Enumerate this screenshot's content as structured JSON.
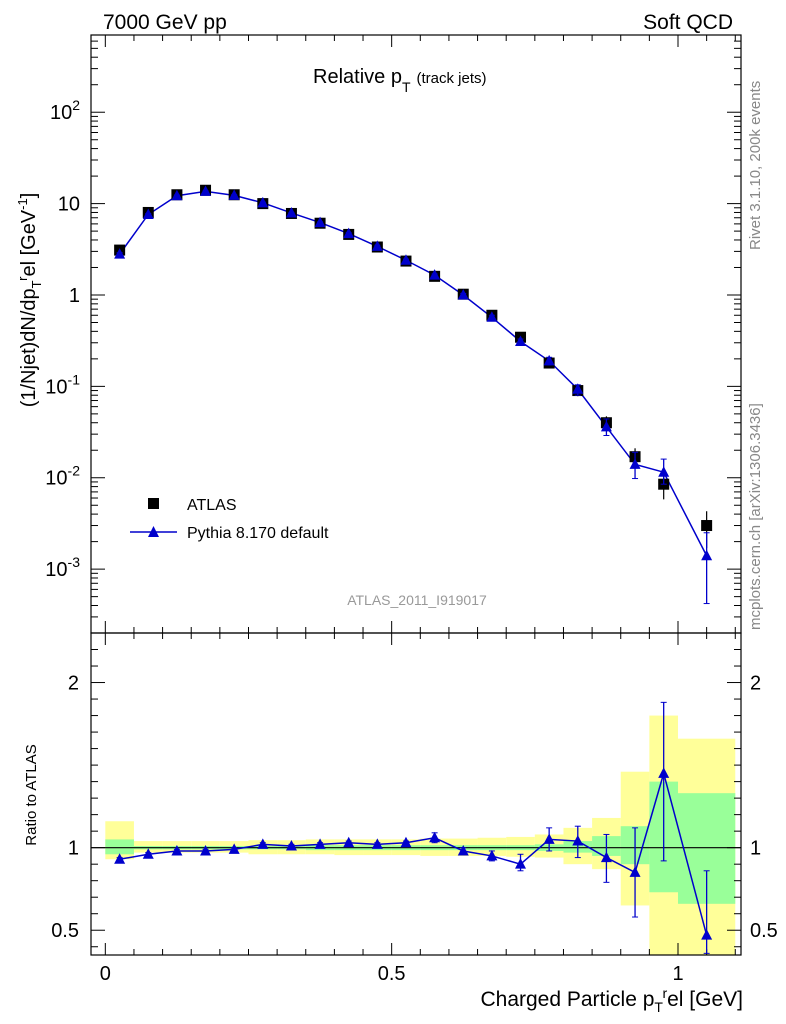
{
  "header": {
    "left": "7000 GeV pp",
    "right": "Soft QCD"
  },
  "side": {
    "rivet": "Rivet 3.1.10,  200k events",
    "mcplots": "mcplots.cern.ch [arXiv:1306.3436]"
  },
  "chart_data": {
    "type": "scatter",
    "title_main": "Relative p",
    "title_sub": "T",
    "title_paren": "(track jets)",
    "analysis_id": "ATLAS_2011_I919017",
    "ylabel": "(1/Njet)dN/dp",
    "ylabel_rest": "el [GeV",
    "xlabel": "Charged Particle p",
    "xlabel_rest": "el [GeV]",
    "ratio_ylabel": "Ratio to ATLAS",
    "xlim": [
      -0.025,
      1.11
    ],
    "ylim_main": [
      0.0002,
      700
    ],
    "ylim_ratio": [
      0.35,
      2.3
    ],
    "x_ticks": [
      "0",
      "0.5",
      "1"
    ],
    "y_ticks": [
      "10^-3",
      "10^-2",
      "10^-1",
      "1",
      "10",
      "10^2"
    ],
    "ratio_ticks": [
      "0.5",
      "1",
      "2"
    ],
    "legend": [
      {
        "name": "ATLAS",
        "marker": "square",
        "color": "#000000"
      },
      {
        "name": "Pythia 8.170 default",
        "marker": "triangle",
        "color": "#0000cc"
      }
    ],
    "x": [
      0.025,
      0.075,
      0.125,
      0.175,
      0.225,
      0.275,
      0.325,
      0.375,
      0.425,
      0.475,
      0.525,
      0.575,
      0.625,
      0.675,
      0.725,
      0.775,
      0.825,
      0.875,
      0.925,
      0.975,
      1.05
    ],
    "series": [
      {
        "name": "ATLAS",
        "values": [
          3.1,
          8.0,
          12.5,
          14.0,
          12.5,
          10.0,
          7.8,
          6.1,
          4.6,
          3.35,
          2.35,
          1.6,
          1.02,
          0.6,
          0.345,
          0.18,
          0.09,
          0.04,
          0.017,
          0.0085,
          0.003
        ],
        "err_low": [
          2.9,
          7.6,
          12.0,
          13.4,
          12.0,
          9.6,
          7.5,
          5.9,
          4.4,
          3.2,
          2.25,
          1.52,
          0.96,
          0.55,
          0.31,
          0.16,
          0.078,
          0.033,
          0.013,
          0.0058,
          0.0017
        ],
        "err_high": [
          3.3,
          8.4,
          13.0,
          14.6,
          13.0,
          10.4,
          8.1,
          6.3,
          4.8,
          3.5,
          2.45,
          1.68,
          1.08,
          0.65,
          0.38,
          0.2,
          0.102,
          0.047,
          0.021,
          0.0115,
          0.0043
        ]
      },
      {
        "name": "Pythia 8.170 default",
        "values": [
          2.8,
          7.6,
          12.2,
          13.6,
          12.3,
          10.2,
          7.9,
          6.2,
          4.7,
          3.4,
          2.4,
          1.65,
          1.0,
          0.57,
          0.31,
          0.19,
          0.093,
          0.036,
          0.014,
          0.0115,
          0.0014
        ],
        "err_low": [
          2.7,
          7.4,
          12.0,
          13.4,
          12.1,
          10.0,
          7.8,
          6.1,
          4.6,
          3.3,
          2.33,
          1.6,
          0.96,
          0.54,
          0.29,
          0.172,
          0.08,
          0.029,
          0.0098,
          0.0085,
          0.00042
        ],
        "err_high": [
          2.9,
          7.8,
          12.4,
          13.8,
          12.5,
          10.4,
          8.0,
          6.3,
          4.8,
          3.5,
          2.47,
          1.7,
          1.04,
          0.6,
          0.33,
          0.208,
          0.104,
          0.044,
          0.019,
          0.016,
          0.0025
        ]
      }
    ],
    "ratio": {
      "values": [
        0.93,
        0.96,
        0.98,
        0.98,
        0.99,
        1.02,
        1.01,
        1.02,
        1.03,
        1.02,
        1.03,
        1.06,
        0.98,
        0.95,
        0.9,
        1.05,
        1.04,
        0.94,
        0.85,
        1.45,
        0.47
      ],
      "err_low": [
        0.92,
        0.95,
        0.97,
        0.97,
        0.98,
        1.01,
        1.0,
        1.01,
        1.02,
        1.01,
        1.02,
        1.03,
        0.96,
        0.92,
        0.86,
        0.98,
        0.94,
        0.79,
        0.58,
        0.92,
        0.36
      ],
      "err_high": [
        0.94,
        0.97,
        0.99,
        0.99,
        1.0,
        1.03,
        1.02,
        1.03,
        1.04,
        1.03,
        1.04,
        1.09,
        1.0,
        0.98,
        0.96,
        1.12,
        1.13,
        1.08,
        1.12,
        1.88,
        0.86
      ]
    },
    "bands": {
      "edges": [
        0,
        0.05,
        0.1,
        0.15,
        0.2,
        0.25,
        0.3,
        0.35,
        0.4,
        0.45,
        0.5,
        0.55,
        0.6,
        0.65,
        0.7,
        0.75,
        0.8,
        0.85,
        0.9,
        0.95,
        1.0,
        1.1
      ],
      "stat_low": [
        0.96,
        0.99,
        0.99,
        0.99,
        0.99,
        0.99,
        0.99,
        0.985,
        0.985,
        0.985,
        0.985,
        0.985,
        0.985,
        0.985,
        0.985,
        0.98,
        0.97,
        0.95,
        0.9,
        0.73,
        0.66
      ],
      "stat_high": [
        1.05,
        1.01,
        1.01,
        1.01,
        1.01,
        1.01,
        1.01,
        1.015,
        1.015,
        1.015,
        1.015,
        1.015,
        1.015,
        1.015,
        1.015,
        1.02,
        1.04,
        1.07,
        1.13,
        1.4,
        1.33
      ],
      "syst_low": [
        0.93,
        0.97,
        0.97,
        0.97,
        0.97,
        0.96,
        0.96,
        0.96,
        0.955,
        0.955,
        0.955,
        0.95,
        0.95,
        0.95,
        0.945,
        0.94,
        0.9,
        0.87,
        0.65,
        0.35,
        0.35
      ],
      "syst_high": [
        1.16,
        1.04,
        1.04,
        1.04,
        1.04,
        1.045,
        1.045,
        1.05,
        1.05,
        1.05,
        1.05,
        1.055,
        1.055,
        1.06,
        1.065,
        1.08,
        1.12,
        1.18,
        1.46,
        1.8,
        1.66
      ]
    },
    "colors": {
      "data": "#000000",
      "mc": "#0000cc",
      "stat_band": "#99ff99",
      "syst_band": "#ffff99"
    }
  }
}
